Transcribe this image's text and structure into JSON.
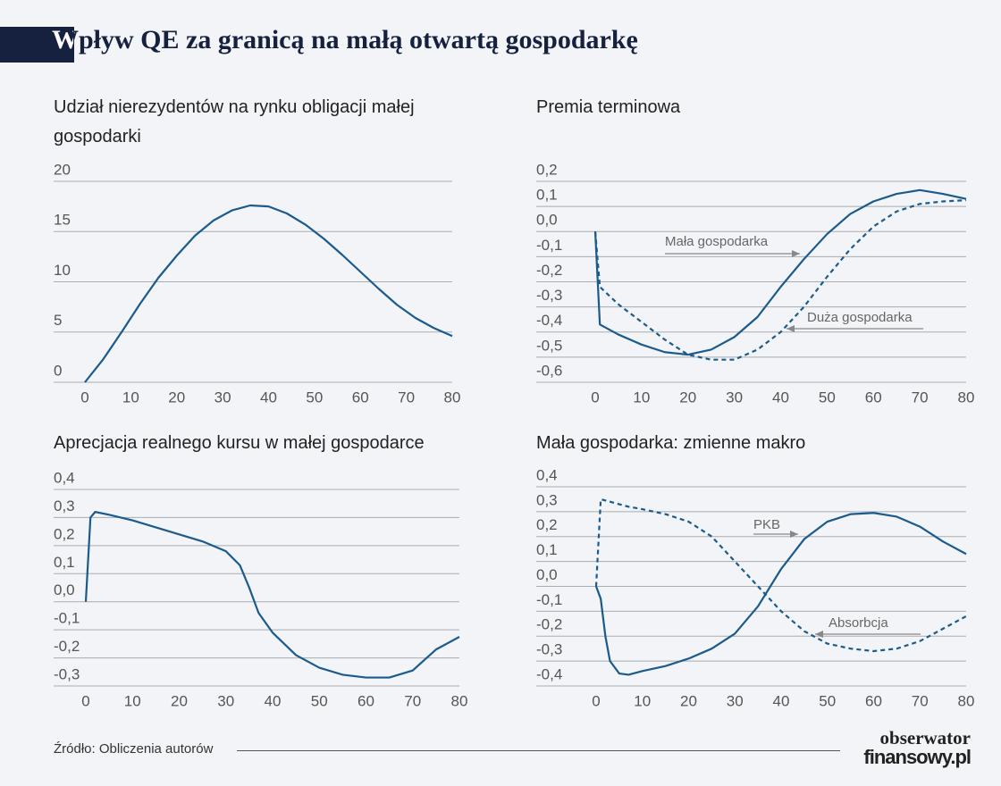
{
  "page": {
    "title": "Wpływ QE za granicą na małą otwartą gospodarkę",
    "source": "Źródło: Obliczenia autorów",
    "logo_top": "obserwator",
    "logo_bottom": "finansowy.pl"
  },
  "chart_data": [
    {
      "type": "line",
      "title": "Udział nierezydentów na rynku obligacji małej gospodarki",
      "x": [
        0,
        4,
        8,
        12,
        16,
        20,
        24,
        28,
        32,
        36,
        40,
        44,
        48,
        52,
        56,
        60,
        64,
        68,
        72,
        76,
        80
      ],
      "series": [
        {
          "name": null,
          "color": "#1b5b8c",
          "dash": false,
          "values": [
            0,
            2.3,
            5.0,
            7.8,
            10.4,
            12.6,
            14.6,
            16.1,
            17.1,
            17.6,
            17.5,
            16.8,
            15.7,
            14.3,
            12.7,
            11.0,
            9.3,
            7.7,
            6.4,
            5.4,
            4.6
          ]
        }
      ],
      "xlim": [
        0,
        80
      ],
      "xticks": [
        0,
        10,
        20,
        30,
        40,
        50,
        60,
        70,
        80
      ],
      "ylim": [
        0,
        20
      ],
      "yticks": [
        0,
        5,
        10,
        15,
        20
      ],
      "grid": true
    },
    {
      "type": "line",
      "title": "Premia terminowa",
      "x": [
        0,
        1,
        5,
        10,
        15,
        20,
        25,
        30,
        35,
        40,
        45,
        50,
        55,
        60,
        65,
        70,
        75,
        80
      ],
      "series": [
        {
          "name": "Mała gospodarka",
          "color": "#1b5b8c",
          "dash": false,
          "values": [
            0,
            -0.37,
            -0.41,
            -0.45,
            -0.48,
            -0.49,
            -0.47,
            -0.42,
            -0.34,
            -0.22,
            -0.11,
            -0.01,
            0.07,
            0.12,
            0.15,
            0.165,
            0.15,
            0.13
          ]
        },
        {
          "name": "Duża gospodarka",
          "color": "#1b5b8c",
          "dash": true,
          "values": [
            0,
            -0.22,
            -0.29,
            -0.36,
            -0.43,
            -0.49,
            -0.51,
            -0.51,
            -0.47,
            -0.4,
            -0.3,
            -0.18,
            -0.07,
            0.02,
            0.08,
            0.11,
            0.12,
            0.125
          ]
        }
      ],
      "xlim": [
        0,
        80
      ],
      "xticks": [
        0,
        10,
        20,
        30,
        40,
        50,
        60,
        70,
        80
      ],
      "ylim": [
        -0.6,
        0.2
      ],
      "yticks": [
        {
          "value": -0.6,
          "label": "-0,6"
        },
        {
          "value": -0.5,
          "label": "-0,5"
        },
        {
          "value": -0.4,
          "label": "-0,4"
        },
        {
          "value": -0.3,
          "label": "-0,3"
        },
        {
          "value": -0.2,
          "label": "-0,2"
        },
        {
          "value": -0.1,
          "label": "-0,1"
        },
        {
          "value": 0,
          "label": "0,0"
        },
        {
          "value": 0.1,
          "label": "0,1"
        },
        {
          "value": 0.2,
          "label": "0,2"
        }
      ],
      "grid": true
    },
    {
      "type": "line",
      "title": "Aprecjacja realnego kursu w małej gospodarce",
      "x": [
        0,
        1,
        2,
        5,
        10,
        15,
        20,
        25,
        30,
        33,
        35,
        37,
        40,
        45,
        50,
        55,
        60,
        65,
        70,
        73,
        75,
        80
      ],
      "series": [
        {
          "name": null,
          "color": "#1b5b8c",
          "dash": false,
          "values": [
            0,
            0.3,
            0.32,
            0.31,
            0.29,
            0.265,
            0.24,
            0.215,
            0.18,
            0.13,
            0.05,
            -0.04,
            -0.11,
            -0.19,
            -0.235,
            -0.26,
            -0.27,
            -0.27,
            -0.245,
            -0.2,
            -0.17,
            -0.125
          ]
        }
      ],
      "xlim": [
        0,
        80
      ],
      "xticks": [
        0,
        10,
        20,
        30,
        40,
        50,
        60,
        70,
        80
      ],
      "ylim": [
        -0.3,
        0.4
      ],
      "yticks": [
        {
          "value": -0.3,
          "label": "-0,3"
        },
        {
          "value": -0.2,
          "label": "-0,2"
        },
        {
          "value": -0.1,
          "label": "-0,1"
        },
        {
          "value": 0,
          "label": "0,0"
        },
        {
          "value": 0.1,
          "label": "0,1"
        },
        {
          "value": 0.2,
          "label": "0,2"
        },
        {
          "value": 0.3,
          "label": "0,3"
        },
        {
          "value": 0.4,
          "label": "0,4"
        }
      ],
      "grid": true
    },
    {
      "type": "line",
      "title": "Mała gospodarka: zmienne makro",
      "x": [
        0,
        1,
        2,
        3,
        5,
        7,
        10,
        15,
        20,
        25,
        30,
        35,
        40,
        45,
        50,
        55,
        60,
        65,
        70,
        75,
        80
      ],
      "series": [
        {
          "name": "PKB",
          "color": "#1b5b8c",
          "dash": false,
          "values": [
            0,
            -0.05,
            -0.2,
            -0.3,
            -0.35,
            -0.355,
            -0.34,
            -0.32,
            -0.29,
            -0.25,
            -0.19,
            -0.08,
            0.07,
            0.19,
            0.26,
            0.29,
            0.295,
            0.28,
            0.24,
            0.18,
            0.13
          ]
        },
        {
          "name": "Absorbcja",
          "color": "#1b5b8c",
          "dash": true,
          "values": [
            0,
            0.35,
            0.345,
            0.34,
            0.33,
            0.32,
            0.31,
            0.29,
            0.26,
            0.2,
            0.1,
            0,
            -0.1,
            -0.18,
            -0.23,
            -0.25,
            -0.26,
            -0.25,
            -0.22,
            -0.17,
            -0.12
          ]
        }
      ],
      "xlim": [
        0,
        80
      ],
      "xticks": [
        0,
        10,
        20,
        30,
        40,
        50,
        60,
        70,
        80
      ],
      "ylim": [
        -0.4,
        0.4
      ],
      "yticks": [
        {
          "value": -0.4,
          "label": "-0,4"
        },
        {
          "value": -0.3,
          "label": "-0,3"
        },
        {
          "value": -0.2,
          "label": "-0,2"
        },
        {
          "value": -0.1,
          "label": "-0,1"
        },
        {
          "value": 0,
          "label": "0,0"
        },
        {
          "value": 0.1,
          "label": "0,1"
        },
        {
          "value": 0.2,
          "label": "0,2"
        },
        {
          "value": 0.3,
          "label": "0,3"
        },
        {
          "value": 0.4,
          "label": "0,4"
        }
      ],
      "grid": true
    }
  ]
}
